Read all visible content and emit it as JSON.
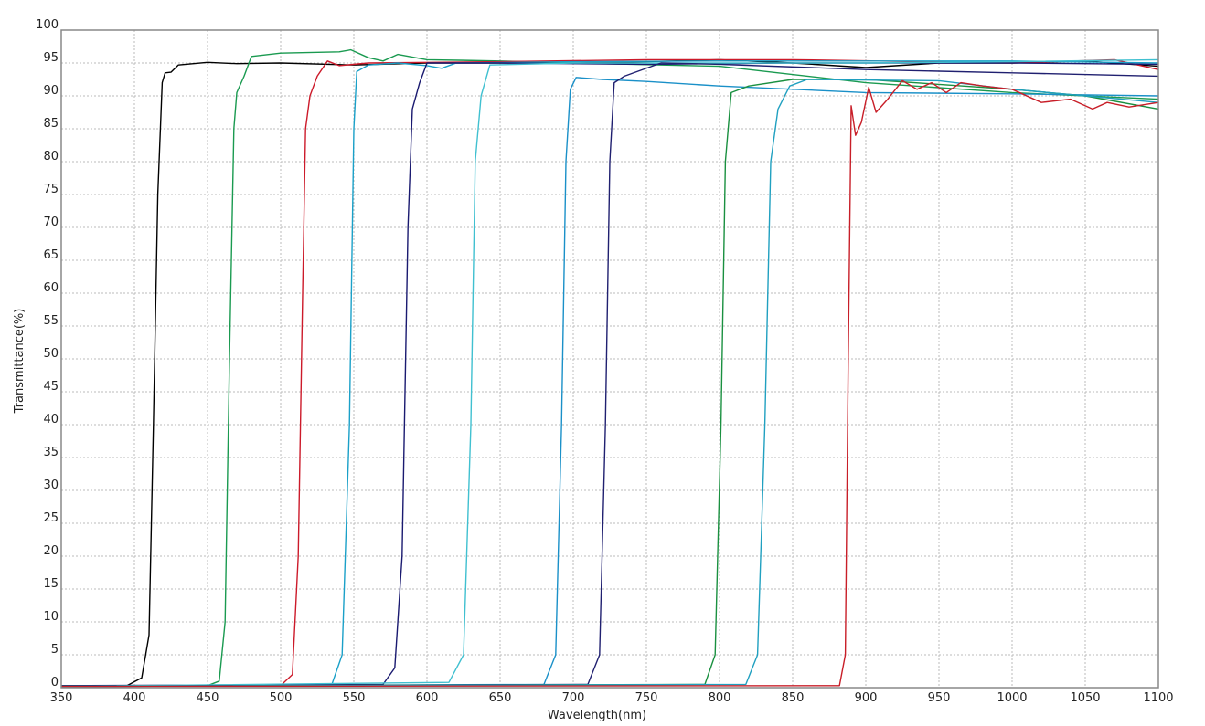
{
  "chart_data": {
    "type": "line",
    "title": "",
    "xlabel": "Wavelength(nm)",
    "ylabel": "Transmittance(%)",
    "xlim": [
      350,
      1100
    ],
    "ylim": [
      0,
      100
    ],
    "xticks": [
      350,
      400,
      450,
      500,
      550,
      600,
      650,
      700,
      750,
      800,
      850,
      900,
      950,
      1000,
      1050,
      1100
    ],
    "yticks": [
      0,
      5,
      10,
      15,
      20,
      25,
      30,
      35,
      40,
      45,
      50,
      55,
      60,
      65,
      70,
      75,
      80,
      85,
      90,
      95,
      100
    ],
    "grid": true,
    "legend": "none",
    "series": [
      {
        "color": "#000000",
        "points": [
          [
            350,
            0.3
          ],
          [
            395,
            0.3
          ],
          [
            405,
            1.5
          ],
          [
            410,
            8
          ],
          [
            413,
            40
          ],
          [
            416,
            75
          ],
          [
            419,
            92
          ],
          [
            421,
            93.5
          ],
          [
            425,
            93.6
          ],
          [
            430,
            94.7
          ],
          [
            450,
            95.1
          ],
          [
            470,
            94.9
          ],
          [
            500,
            95
          ],
          [
            550,
            94.7
          ],
          [
            600,
            95
          ],
          [
            700,
            95
          ],
          [
            750,
            95.2
          ],
          [
            800,
            95.5
          ],
          [
            850,
            95
          ],
          [
            900,
            94.3
          ],
          [
            950,
            95
          ],
          [
            1000,
            95
          ],
          [
            1050,
            95.3
          ],
          [
            1100,
            94.5
          ]
        ]
      },
      {
        "color": "#1a9a50",
        "points": [
          [
            350,
            0.2
          ],
          [
            450,
            0.3
          ],
          [
            458,
            1
          ],
          [
            462,
            10
          ],
          [
            465,
            50
          ],
          [
            468,
            85
          ],
          [
            470,
            90.5
          ],
          [
            475,
            93
          ],
          [
            480,
            96
          ],
          [
            500,
            96.5
          ],
          [
            540,
            96.7
          ],
          [
            548,
            97
          ],
          [
            560,
            95.8
          ],
          [
            570,
            95.3
          ],
          [
            580,
            96.3
          ],
          [
            600,
            95.5
          ],
          [
            650,
            95.3
          ],
          [
            700,
            95
          ],
          [
            800,
            94.5
          ],
          [
            900,
            92
          ],
          [
            1000,
            90.5
          ],
          [
            1100,
            89.5
          ]
        ]
      },
      {
        "color": "#cc1a2a",
        "points": [
          [
            350,
            0.2
          ],
          [
            500,
            0.3
          ],
          [
            508,
            2
          ],
          [
            512,
            20
          ],
          [
            515,
            60
          ],
          [
            517,
            85
          ],
          [
            520,
            90
          ],
          [
            525,
            93
          ],
          [
            532,
            95.3
          ],
          [
            540,
            94.6
          ],
          [
            560,
            95
          ],
          [
            650,
            95.2
          ],
          [
            750,
            95.5
          ],
          [
            850,
            95.5
          ],
          [
            1000,
            95
          ],
          [
            1070,
            95.5
          ],
          [
            1100,
            94
          ]
        ]
      },
      {
        "color": "#1aa0c8",
        "points": [
          [
            350,
            0.2
          ],
          [
            535,
            0.5
          ],
          [
            542,
            5
          ],
          [
            547,
            40
          ],
          [
            550,
            85
          ],
          [
            552,
            93.7
          ],
          [
            560,
            94.7
          ],
          [
            580,
            95
          ],
          [
            600,
            94.6
          ],
          [
            610,
            94.2
          ],
          [
            620,
            95
          ],
          [
            700,
            95.2
          ],
          [
            800,
            95.3
          ],
          [
            1000,
            95.3
          ],
          [
            1100,
            95
          ]
        ]
      },
      {
        "color": "#1a1a70",
        "points": [
          [
            350,
            0.3
          ],
          [
            570,
            0.5
          ],
          [
            578,
            3
          ],
          [
            583,
            20
          ],
          [
            587,
            70
          ],
          [
            590,
            88
          ],
          [
            595,
            92
          ],
          [
            600,
            95
          ],
          [
            650,
            95
          ],
          [
            750,
            94.8
          ],
          [
            850,
            95
          ],
          [
            1000,
            95
          ],
          [
            1100,
            94.8
          ]
        ]
      },
      {
        "color": "#40c0d0",
        "points": [
          [
            350,
            0.2
          ],
          [
            615,
            0.8
          ],
          [
            625,
            5
          ],
          [
            630,
            40
          ],
          [
            633,
            80
          ],
          [
            637,
            90
          ],
          [
            643,
            94.7
          ],
          [
            700,
            95
          ],
          [
            900,
            95
          ],
          [
            1000,
            95.2
          ],
          [
            1100,
            95.5
          ]
        ]
      },
      {
        "color": "#1a90c8",
        "points": [
          [
            350,
            0.2
          ],
          [
            680,
            0.5
          ],
          [
            688,
            5
          ],
          [
            692,
            40
          ],
          [
            695,
            80
          ],
          [
            698,
            91
          ],
          [
            702,
            92.8
          ],
          [
            720,
            92.5
          ],
          [
            750,
            92.2
          ],
          [
            800,
            91.5
          ],
          [
            900,
            90.5
          ],
          [
            1000,
            90.3
          ],
          [
            1100,
            90
          ]
        ]
      },
      {
        "color": "#202070",
        "points": [
          [
            350,
            0.2
          ],
          [
            710,
            0.5
          ],
          [
            718,
            5
          ],
          [
            722,
            40
          ],
          [
            725,
            80
          ],
          [
            728,
            92
          ],
          [
            735,
            93
          ],
          [
            760,
            95
          ],
          [
            800,
            94.8
          ],
          [
            900,
            94
          ],
          [
            1000,
            93.5
          ],
          [
            1100,
            93
          ]
        ]
      },
      {
        "color": "#1a9040",
        "points": [
          [
            350,
            0.2
          ],
          [
            790,
            0.5
          ],
          [
            797,
            5
          ],
          [
            801,
            40
          ],
          [
            804,
            80
          ],
          [
            808,
            90.5
          ],
          [
            820,
            91.5
          ],
          [
            850,
            92.5
          ],
          [
            900,
            92.5
          ],
          [
            1000,
            91
          ],
          [
            1050,
            90
          ],
          [
            1100,
            88
          ]
        ]
      },
      {
        "color": "#20a0c0",
        "points": [
          [
            350,
            0.2
          ],
          [
            818,
            0.5
          ],
          [
            826,
            5
          ],
          [
            831,
            40
          ],
          [
            835,
            80
          ],
          [
            840,
            88
          ],
          [
            848,
            91.5
          ],
          [
            860,
            92.5
          ],
          [
            950,
            92.3
          ],
          [
            1000,
            91
          ],
          [
            1100,
            89
          ]
        ]
      },
      {
        "color": "#c81e28",
        "points": [
          [
            350,
            0.2
          ],
          [
            882,
            0.3
          ],
          [
            886,
            5
          ],
          [
            888,
            50
          ],
          [
            890,
            88.5
          ],
          [
            893,
            84
          ],
          [
            897,
            86
          ],
          [
            902,
            91.3
          ],
          [
            907,
            87.5
          ],
          [
            915,
            89.5
          ],
          [
            925,
            92.3
          ],
          [
            935,
            91
          ],
          [
            945,
            92
          ],
          [
            955,
            90.5
          ],
          [
            965,
            92
          ],
          [
            980,
            91.5
          ],
          [
            1000,
            91
          ],
          [
            1020,
            89
          ],
          [
            1040,
            89.5
          ],
          [
            1055,
            88
          ],
          [
            1065,
            89
          ],
          [
            1080,
            88.3
          ],
          [
            1100,
            89
          ]
        ]
      }
    ]
  }
}
